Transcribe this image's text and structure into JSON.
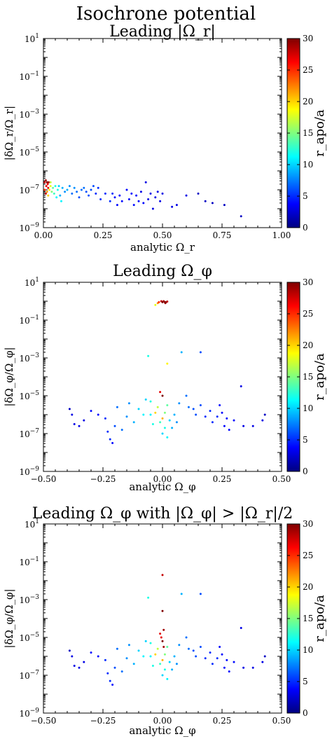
{
  "suptitle": "Isochrone potential",
  "colorbar": {
    "label": "r_apo/a",
    "ticks": [
      0,
      5,
      10,
      15,
      20,
      25,
      30
    ],
    "range": [
      0,
      30
    ],
    "colormap": [
      "#00007f",
      "#0000ff",
      "#007fff",
      "#00ffff",
      "#7fff7f",
      "#ffff00",
      "#ff7f00",
      "#ff0000",
      "#7f0000"
    ]
  },
  "chart_data": [
    {
      "type": "scatter",
      "title": "Leading |Ω_r|",
      "xlabel": "analytic Ω_r",
      "ylabel": "|δΩ_r/Ω_r|",
      "xlim": [
        0.0,
        1.0
      ],
      "ylim_log10": [
        -9,
        1
      ],
      "yscale": "log",
      "xticks": [
        "0.00",
        "0.25",
        "0.50",
        "0.75",
        "1.00"
      ],
      "xtick_values": [
        0,
        0.25,
        0.5,
        0.75,
        1.0
      ],
      "yticks_exp": [
        1,
        -1,
        -3,
        -5,
        -7,
        -9
      ],
      "points": [
        [
          0.005,
          -6.6,
          28
        ],
        [
          0.01,
          -6.5,
          29
        ],
        [
          0.012,
          -6.8,
          27
        ],
        [
          0.015,
          -6.6,
          30
        ],
        [
          0.018,
          -6.7,
          26
        ],
        [
          0.02,
          -6.9,
          27
        ],
        [
          0.022,
          -6.6,
          29
        ],
        [
          0.01,
          -7.2,
          28
        ],
        [
          0.005,
          -7.0,
          25
        ],
        [
          0.015,
          -7.1,
          22
        ],
        [
          0.02,
          -7.3,
          20
        ],
        [
          0.025,
          -7.0,
          19
        ],
        [
          0.03,
          -6.8,
          18
        ],
        [
          0.03,
          -6.6,
          17
        ],
        [
          0.035,
          -7.1,
          15
        ],
        [
          0.04,
          -6.9,
          14
        ],
        [
          0.045,
          -7.2,
          13
        ],
        [
          0.05,
          -6.8,
          12
        ],
        [
          0.055,
          -7.4,
          11
        ],
        [
          0.06,
          -7.0,
          12
        ],
        [
          0.065,
          -6.8,
          10
        ],
        [
          0.07,
          -7.3,
          9
        ],
        [
          0.075,
          -7.6,
          11
        ],
        [
          0.08,
          -6.9,
          9
        ],
        [
          0.09,
          -7.1,
          8
        ],
        [
          0.1,
          -7.0,
          9
        ],
        [
          0.11,
          -6.8,
          8
        ],
        [
          0.12,
          -7.2,
          7
        ],
        [
          0.13,
          -6.9,
          8
        ],
        [
          0.14,
          -7.1,
          7
        ],
        [
          0.15,
          -7.4,
          6
        ],
        [
          0.16,
          -7.0,
          7
        ],
        [
          0.17,
          -6.9,
          7
        ],
        [
          0.18,
          -7.1,
          6
        ],
        [
          0.19,
          -7.3,
          6
        ],
        [
          0.2,
          -7.0,
          6
        ],
        [
          0.21,
          -6.8,
          6
        ],
        [
          0.22,
          -7.2,
          5
        ],
        [
          0.23,
          -6.9,
          5
        ],
        [
          0.24,
          -7.5,
          5
        ],
        [
          0.26,
          -7.2,
          5
        ],
        [
          0.28,
          -7.6,
          5
        ],
        [
          0.29,
          -7.2,
          5
        ],
        [
          0.3,
          -7.4,
          4
        ],
        [
          0.31,
          -7.8,
          4
        ],
        [
          0.32,
          -7.3,
          4
        ],
        [
          0.33,
          -7.6,
          4
        ],
        [
          0.35,
          -7.0,
          4
        ],
        [
          0.36,
          -7.5,
          4
        ],
        [
          0.37,
          -7.2,
          4
        ],
        [
          0.38,
          -7.8,
          4
        ],
        [
          0.39,
          -7.3,
          4
        ],
        [
          0.4,
          -7.6,
          4
        ],
        [
          0.41,
          -7.1,
          3
        ],
        [
          0.42,
          -7.7,
          4
        ],
        [
          0.43,
          -6.6,
          3
        ],
        [
          0.44,
          -7.5,
          3
        ],
        [
          0.45,
          -7.2,
          3
        ],
        [
          0.46,
          -8.0,
          3
        ],
        [
          0.47,
          -7.4,
          3
        ],
        [
          0.48,
          -7.1,
          3
        ],
        [
          0.49,
          -7.6,
          3
        ],
        [
          0.5,
          -7.2,
          3
        ],
        [
          0.54,
          -7.9,
          3
        ],
        [
          0.56,
          -7.8,
          3
        ],
        [
          0.6,
          -7.3,
          3
        ],
        [
          0.65,
          -7.2,
          2
        ],
        [
          0.68,
          -7.6,
          2
        ],
        [
          0.71,
          -7.7,
          2
        ],
        [
          0.76,
          -7.8,
          2
        ],
        [
          0.83,
          -8.4,
          2
        ]
      ]
    },
    {
      "type": "scatter",
      "title": "Leading Ω_φ",
      "xlabel": "analytic Ω_φ",
      "ylabel": "|δΩ_φ/Ω_φ|",
      "xlim": [
        -0.5,
        0.5
      ],
      "ylim_log10": [
        -9,
        1
      ],
      "yscale": "log",
      "xticks": [
        "−0.50",
        "−0.25",
        "0.00",
        "0.25",
        "0.50"
      ],
      "xtick_values": [
        -0.5,
        -0.25,
        0,
        0.25,
        0.5
      ],
      "yticks_exp": [
        1,
        -1,
        -3,
        -5,
        -7,
        -9
      ],
      "points": [
        [
          -0.03,
          -0.2,
          18
        ],
        [
          -0.02,
          -0.1,
          22
        ],
        [
          -0.015,
          -0.05,
          25
        ],
        [
          -0.005,
          0.0,
          28
        ],
        [
          0.0,
          -0.05,
          30
        ],
        [
          0.005,
          0.0,
          29
        ],
        [
          0.01,
          -0.05,
          30
        ],
        [
          0.012,
          -0.1,
          29
        ],
        [
          0.015,
          -0.05,
          30
        ],
        [
          0.02,
          -0.02,
          28
        ],
        [
          -0.06,
          -2.9,
          12
        ],
        [
          0.02,
          -3.3,
          19
        ],
        [
          0.08,
          -2.7,
          9
        ],
        [
          0.16,
          -2.7,
          6
        ],
        [
          0.33,
          -4.5,
          3
        ],
        [
          -0.01,
          -4.8,
          27
        ],
        [
          0.0,
          -5.0,
          30
        ],
        [
          -0.05,
          -5.3,
          12
        ],
        [
          -0.02,
          -5.6,
          17
        ],
        [
          0.02,
          -5.5,
          14
        ],
        [
          -0.07,
          -5.2,
          10
        ],
        [
          -0.03,
          -5.9,
          20
        ],
        [
          0.0,
          -6.2,
          21
        ],
        [
          0.01,
          -5.9,
          15
        ],
        [
          -0.04,
          -6.5,
          12
        ],
        [
          -0.05,
          -6.0,
          11
        ],
        [
          0.03,
          -6.3,
          10
        ],
        [
          0.05,
          -6.0,
          9
        ],
        [
          0.06,
          -6.4,
          8
        ],
        [
          0.07,
          -5.4,
          8
        ],
        [
          0.1,
          -5.0,
          7
        ],
        [
          0.11,
          -5.6,
          7
        ],
        [
          0.13,
          -5.7,
          6
        ],
        [
          0.14,
          -6.0,
          6
        ],
        [
          0.16,
          -5.5,
          6
        ],
        [
          0.18,
          -6.1,
          5
        ],
        [
          0.2,
          -5.8,
          5
        ],
        [
          0.21,
          -6.4,
          5
        ],
        [
          0.23,
          -6.1,
          5
        ],
        [
          0.24,
          -5.5,
          4
        ],
        [
          0.25,
          -5.9,
          4
        ],
        [
          0.26,
          -6.6,
          4
        ],
        [
          0.27,
          -6.2,
          4
        ],
        [
          0.28,
          -6.8,
          4
        ],
        [
          0.3,
          -6.3,
          4
        ],
        [
          0.34,
          -6.6,
          3
        ],
        [
          0.38,
          -6.6,
          3
        ],
        [
          0.42,
          -6.3,
          3
        ],
        [
          0.43,
          -6.0,
          2
        ],
        [
          -0.1,
          -5.7,
          10
        ],
        [
          -0.12,
          -6.4,
          9
        ],
        [
          -0.14,
          -5.4,
          8
        ],
        [
          -0.15,
          -6.1,
          8
        ],
        [
          -0.17,
          -6.8,
          7
        ],
        [
          -0.19,
          -5.6,
          7
        ],
        [
          -0.2,
          -6.6,
          6
        ],
        [
          -0.22,
          -7.3,
          5
        ],
        [
          -0.23,
          -6.9,
          5
        ],
        [
          -0.24,
          -6.2,
          5
        ],
        [
          -0.27,
          -6.0,
          4
        ],
        [
          -0.3,
          -5.8,
          4
        ],
        [
          -0.33,
          -6.3,
          3
        ],
        [
          -0.35,
          -6.6,
          3
        ],
        [
          -0.37,
          -6.5,
          3
        ],
        [
          -0.39,
          -5.7,
          2
        ],
        [
          -0.38,
          -6.0,
          3
        ],
        [
          -0.21,
          -7.5,
          4
        ],
        [
          0.0,
          -7.0,
          10
        ],
        [
          0.01,
          -6.7,
          12
        ],
        [
          0.02,
          -7.2,
          11
        ],
        [
          -0.01,
          -6.4,
          13
        ],
        [
          -0.08,
          -6.0,
          11
        ],
        [
          0.04,
          -6.7,
          9
        ]
      ]
    },
    {
      "type": "scatter",
      "title": "Leading Ω_φ with |Ω_φ| > |Ω_r|/2",
      "xlabel": "analytic Ω_φ",
      "ylabel": "|δΩ_φ/Ω_φ|",
      "xlim": [
        -0.5,
        0.5
      ],
      "ylim_log10": [
        -9,
        1
      ],
      "yscale": "log",
      "xticks": [
        "−0.50",
        "−0.25",
        "0.00",
        "0.25",
        "0.50"
      ],
      "xtick_values": [
        -0.5,
        -0.25,
        0,
        0.25,
        0.5
      ],
      "yticks_exp": [
        1,
        -1,
        -3,
        -5,
        -7,
        -9
      ],
      "points": [
        [
          0.0,
          -1.7,
          28
        ],
        [
          0.0,
          -3.6,
          30
        ],
        [
          -0.06,
          -2.9,
          12
        ],
        [
          0.08,
          -2.7,
          9
        ],
        [
          0.16,
          -2.7,
          6
        ],
        [
          0.33,
          -4.5,
          3
        ],
        [
          -0.01,
          -4.8,
          27
        ],
        [
          0.0,
          -5.2,
          30
        ],
        [
          0.005,
          -5.5,
          29
        ],
        [
          -0.02,
          -5.6,
          17
        ],
        [
          0.02,
          -5.5,
          14
        ],
        [
          -0.05,
          -5.3,
          12
        ],
        [
          -0.07,
          -5.2,
          10
        ],
        [
          -0.03,
          -5.9,
          20
        ],
        [
          0.0,
          -6.2,
          21
        ],
        [
          0.01,
          -5.9,
          15
        ],
        [
          -0.04,
          -6.5,
          12
        ],
        [
          -0.05,
          -6.0,
          11
        ],
        [
          0.03,
          -6.3,
          10
        ],
        [
          0.05,
          -6.0,
          9
        ],
        [
          0.06,
          -6.4,
          8
        ],
        [
          0.07,
          -5.4,
          8
        ],
        [
          0.1,
          -5.0,
          7
        ],
        [
          0.11,
          -5.6,
          7
        ],
        [
          0.13,
          -5.7,
          6
        ],
        [
          0.14,
          -6.0,
          6
        ],
        [
          0.16,
          -5.5,
          6
        ],
        [
          0.18,
          -6.1,
          5
        ],
        [
          0.2,
          -5.8,
          5
        ],
        [
          0.21,
          -6.4,
          5
        ],
        [
          0.23,
          -6.1,
          5
        ],
        [
          0.24,
          -5.5,
          4
        ],
        [
          0.25,
          -5.9,
          4
        ],
        [
          0.26,
          -6.6,
          4
        ],
        [
          0.27,
          -6.2,
          4
        ],
        [
          0.28,
          -6.8,
          4
        ],
        [
          0.3,
          -6.3,
          4
        ],
        [
          0.34,
          -6.6,
          3
        ],
        [
          0.38,
          -6.6,
          3
        ],
        [
          0.42,
          -6.3,
          3
        ],
        [
          0.43,
          -6.0,
          2
        ],
        [
          -0.1,
          -5.7,
          10
        ],
        [
          -0.12,
          -6.4,
          9
        ],
        [
          -0.14,
          -5.4,
          8
        ],
        [
          -0.15,
          -6.1,
          8
        ],
        [
          -0.17,
          -6.8,
          7
        ],
        [
          -0.19,
          -5.6,
          7
        ],
        [
          -0.2,
          -6.6,
          6
        ],
        [
          -0.22,
          -7.3,
          5
        ],
        [
          -0.23,
          -6.9,
          5
        ],
        [
          -0.24,
          -6.2,
          5
        ],
        [
          -0.27,
          -6.0,
          4
        ],
        [
          -0.3,
          -5.8,
          4
        ],
        [
          -0.33,
          -6.3,
          3
        ],
        [
          -0.35,
          -6.6,
          3
        ],
        [
          -0.37,
          -6.5,
          3
        ],
        [
          -0.39,
          -5.7,
          2
        ],
        [
          -0.38,
          -6.0,
          3
        ],
        [
          -0.21,
          -7.5,
          4
        ],
        [
          0.0,
          -7.0,
          10
        ],
        [
          0.01,
          -6.7,
          12
        ],
        [
          0.02,
          -7.2,
          11
        ],
        [
          -0.01,
          -6.4,
          13
        ],
        [
          -0.08,
          -6.0,
          11
        ],
        [
          0.04,
          -6.7,
          9
        ],
        [
          0.005,
          -4.6,
          29
        ],
        [
          -0.005,
          -5.0,
          27
        ]
      ]
    }
  ]
}
